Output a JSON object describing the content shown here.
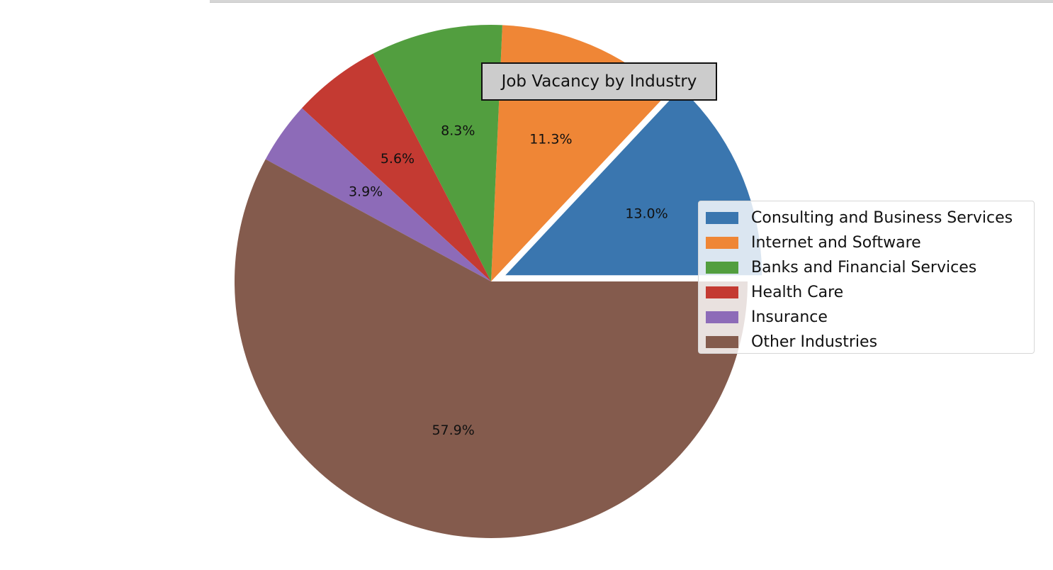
{
  "chart_data": {
    "type": "pie",
    "title": "Job Vacancy by Industry",
    "slices": [
      {
        "label": "Consulting and Business Services",
        "value": 13.0,
        "pct_label": "13.0%",
        "color": "#3a76af",
        "exploded": true
      },
      {
        "label": "Internet and Software",
        "value": 11.3,
        "pct_label": "11.3%",
        "color": "#ef8636",
        "exploded": false
      },
      {
        "label": "Banks and Financial Services",
        "value": 8.3,
        "pct_label": "8.3%",
        "color": "#529e3f",
        "exploded": false
      },
      {
        "label": "Health Care",
        "value": 5.6,
        "pct_label": "5.6%",
        "color": "#c43a32",
        "exploded": false
      },
      {
        "label": "Insurance",
        "value": 3.9,
        "pct_label": "3.9%",
        "color": "#8d6bb8",
        "exploded": false
      },
      {
        "label": "Other Industries",
        "value": 57.9,
        "pct_label": "57.9%",
        "color": "#845b4d",
        "exploded": false
      }
    ],
    "start_angle_deg": 0,
    "direction": "counterclockwise",
    "legend_position": "center-right"
  }
}
